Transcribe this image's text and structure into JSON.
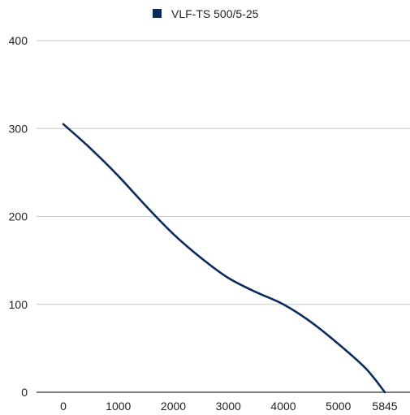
{
  "chart_data": {
    "type": "line",
    "legend": {
      "position": "top-center"
    },
    "grid": true,
    "xlim": [
      0,
      5845
    ],
    "ylim": [
      0,
      400
    ],
    "x_ticks": [
      0,
      1000,
      2000,
      3000,
      4000,
      5000,
      5845
    ],
    "y_ticks": [
      0,
      100,
      200,
      300,
      400
    ],
    "series": [
      {
        "name": "VLF-TS 500/5-25",
        "color": "#0b2a5e",
        "x": [
          0,
          500,
          1000,
          1500,
          2000,
          2500,
          3000,
          3500,
          4000,
          4500,
          5000,
          5500,
          5845
        ],
        "y": [
          305,
          277,
          246,
          212,
          180,
          153,
          130,
          114,
          100,
          80,
          55,
          27,
          0
        ]
      }
    ]
  }
}
